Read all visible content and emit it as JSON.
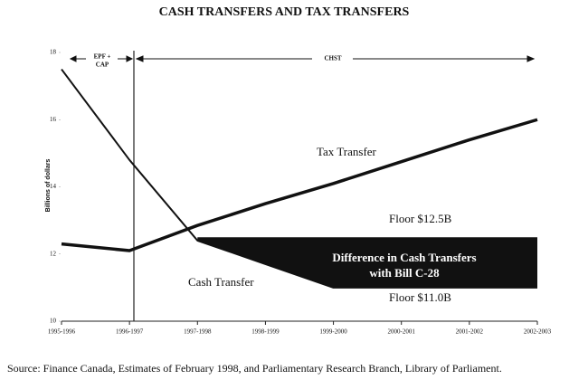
{
  "chart_data": {
    "type": "line",
    "title": "CASH TRANSFERS AND TAX TRANSFERS",
    "y_label": "Billions of dollars",
    "categories": [
      "1995-1996",
      "1996-1997",
      "1997-1998",
      "1998-1999",
      "1999-2000",
      "2000-2001",
      "2001-2002",
      "2002-2003"
    ],
    "series": [
      {
        "name": "Tax Transfer",
        "color": "#111111",
        "values": [
          12.3,
          12.1,
          12.85,
          13.5,
          14.1,
          14.75,
          15.4,
          16.0
        ]
      },
      {
        "name": "Cash Transfer",
        "color": "#111111",
        "values": [
          17.5,
          14.8,
          12.4,
          11.7,
          11.0,
          11.0,
          11.0,
          11.0
        ]
      }
    ],
    "floor": {
      "values": [
        null,
        null,
        12.5,
        12.5,
        12.5,
        12.5,
        12.5,
        12.5
      ],
      "color": "#111111"
    },
    "annotations": {
      "floor_high": "Floor $12.5B",
      "floor_low": "Floor $11.0B",
      "difference": [
        "Difference in Cash Transfers",
        "with Bill C-28"
      ],
      "region_before": [
        "EPF +",
        "CAP"
      ],
      "region_after": "CHST"
    },
    "ylim": [
      10,
      18
    ],
    "yticks": [
      10,
      12,
      14,
      16,
      18
    ],
    "source": "Source: Finance Canada, Estimates of February 1998, and Parliamentary Research Branch, Library of Parliament."
  }
}
